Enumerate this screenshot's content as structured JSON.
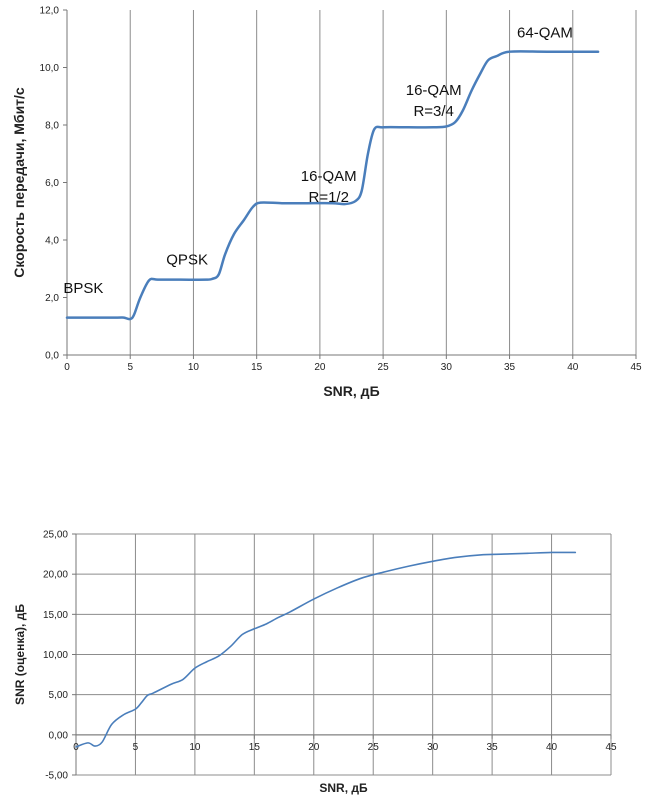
{
  "chart_data": [
    {
      "type": "line",
      "xlabel": "SNR, дБ",
      "ylabel": "Скорость передачи, Мбит/с",
      "xlim": [
        0,
        45
      ],
      "ylim": [
        0,
        12
      ],
      "xticks": [
        "0",
        "5",
        "10",
        "15",
        "20",
        "25",
        "30",
        "35",
        "40",
        "45"
      ],
      "yticks": [
        "0,0",
        "2,0",
        "4,0",
        "6,0",
        "8,0",
        "10,0",
        "12,0"
      ],
      "grid": "vertical",
      "color": "#4a7ebb",
      "x": [
        0,
        2,
        4,
        4.5,
        5,
        5.3,
        5.8,
        6.5,
        7.2,
        9,
        11,
        11.5,
        12,
        12.5,
        13.2,
        14,
        14.7,
        15.3,
        17,
        19,
        21,
        22,
        22.8,
        23.3,
        23.8,
        24.3,
        25,
        27,
        29,
        30,
        30.7,
        31.3,
        32,
        32.7,
        33.3,
        34,
        35,
        38,
        42
      ],
      "y": [
        1.3,
        1.3,
        1.3,
        1.3,
        1.25,
        1.4,
        2.0,
        2.6,
        2.62,
        2.62,
        2.62,
        2.65,
        2.8,
        3.5,
        4.2,
        4.7,
        5.15,
        5.3,
        5.28,
        5.28,
        5.28,
        5.25,
        5.35,
        5.7,
        7.0,
        7.85,
        7.92,
        7.92,
        7.92,
        7.95,
        8.1,
        8.5,
        9.2,
        9.8,
        10.25,
        10.4,
        10.55,
        10.55,
        10.55
      ],
      "annotations": [
        {
          "lines": [
            "BPSK"
          ],
          "x": 1.3,
          "y": 2.15
        },
        {
          "lines": [
            "QPSK"
          ],
          "x": 9.5,
          "y": 3.15
        },
        {
          "lines": [
            "16-QAM",
            "R=1/2"
          ],
          "x": 20.7,
          "y": 6.05
        },
        {
          "lines": [
            "16-QAM",
            "R=3/4"
          ],
          "x": 29.0,
          "y": 9.05
        },
        {
          "lines": [
            "64-QAM"
          ],
          "x": 37.8,
          "y": 11.05
        }
      ]
    },
    {
      "type": "line",
      "xlabel": "SNR, дБ",
      "ylabel": "SNR (оценка), дБ",
      "xlim": [
        0,
        45
      ],
      "ylim": [
        -5,
        25
      ],
      "xticks": [
        "0",
        "5",
        "10",
        "15",
        "20",
        "25",
        "30",
        "35",
        "40",
        "45"
      ],
      "yticks": [
        "-5,00",
        "0,00",
        "5,00",
        "10,00",
        "15,00",
        "20,00",
        "25,00"
      ],
      "grid": "both",
      "color": "#4a7ebb",
      "x": [
        0,
        1,
        1.6,
        2.2,
        3,
        4,
        5,
        5.5,
        6,
        6.5,
        8,
        9,
        10,
        11,
        12,
        13,
        14,
        15,
        16,
        17,
        18,
        20,
        22,
        24,
        26,
        28,
        30,
        32,
        34,
        36,
        38,
        40,
        42
      ],
      "y": [
        -1.5,
        -1.0,
        -1.4,
        -0.9,
        1.3,
        2.5,
        3.2,
        4.0,
        4.9,
        5.2,
        6.3,
        6.9,
        8.3,
        9.1,
        9.8,
        11.0,
        12.5,
        13.2,
        13.8,
        14.6,
        15.3,
        16.9,
        18.3,
        19.5,
        20.3,
        21.0,
        21.6,
        22.1,
        22.4,
        22.5,
        22.6,
        22.7,
        22.7
      ]
    }
  ]
}
